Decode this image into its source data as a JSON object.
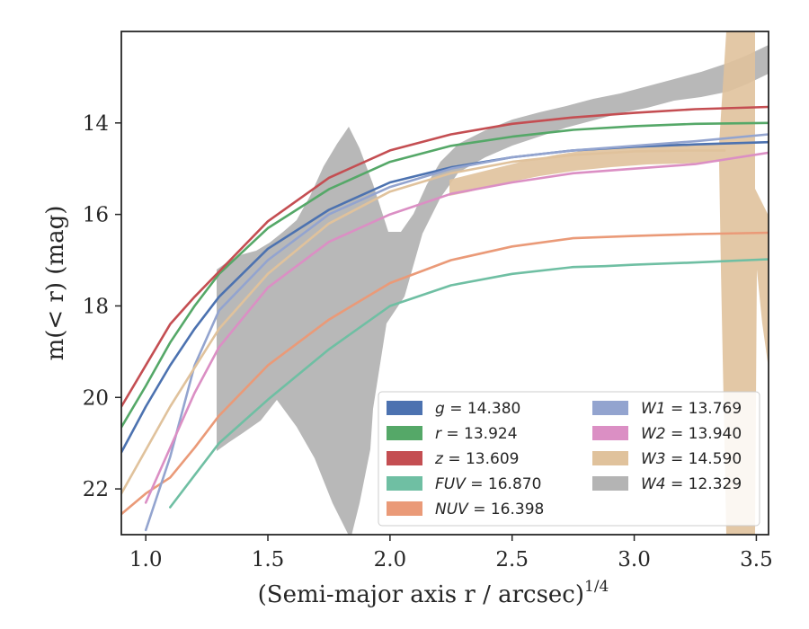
{
  "chart_data": {
    "type": "line",
    "xlabel": "(Semi-major axis r / arcsec)",
    "xlabel_exponent": "1/4",
    "ylabel": "m(< r) (mag)",
    "xlim": [
      0.9,
      3.55
    ],
    "ylim": [
      23.0,
      12.0
    ],
    "xticks": [
      "1.0",
      "1.5",
      "2.0",
      "2.5",
      "3.0",
      "3.5"
    ],
    "yticks": [
      "14",
      "16",
      "18",
      "20",
      "22"
    ],
    "legend_position": "lower-right",
    "legend": [
      {
        "band": "g",
        "value": "14.380",
        "color": "#4c72b0"
      },
      {
        "band": "r",
        "value": "13.924",
        "color": "#55a868"
      },
      {
        "band": "z",
        "value": "13.609",
        "color": "#c44e52"
      },
      {
        "band": "FUV",
        "value": "16.870",
        "color": "#6fbfa3"
      },
      {
        "band": "NUV",
        "value": "16.398",
        "color": "#ea9a78"
      },
      {
        "band": "W1",
        "value": "13.769",
        "color": "#93a4cf"
      },
      {
        "band": "W2",
        "value": "13.940",
        "color": "#db8fc4"
      },
      {
        "band": "W3",
        "value": "14.590",
        "color": "#e0c29c"
      },
      {
        "band": "W4",
        "value": "12.329",
        "color": "#b4b4b4"
      }
    ],
    "series": [
      {
        "name": "g",
        "color": "#4c72b0",
        "x": [
          0.9,
          1.0,
          1.1,
          1.2,
          1.3,
          1.5,
          1.75,
          2.0,
          2.25,
          2.5,
          2.75,
          3.0,
          3.25,
          3.55
        ],
        "y": [
          21.2,
          20.2,
          19.3,
          18.5,
          17.8,
          16.75,
          15.9,
          15.3,
          14.97,
          14.75,
          14.6,
          14.52,
          14.47,
          14.42
        ]
      },
      {
        "name": "r",
        "color": "#55a868",
        "x": [
          0.9,
          1.0,
          1.1,
          1.2,
          1.3,
          1.5,
          1.75,
          2.0,
          2.25,
          2.5,
          2.75,
          3.0,
          3.25,
          3.55
        ],
        "y": [
          20.65,
          19.75,
          18.8,
          18.0,
          17.3,
          16.3,
          15.45,
          14.85,
          14.5,
          14.3,
          14.15,
          14.07,
          14.02,
          14.0
        ]
      },
      {
        "name": "z",
        "color": "#c44e52",
        "x": [
          0.9,
          1.0,
          1.1,
          1.2,
          1.3,
          1.5,
          1.75,
          2.0,
          2.25,
          2.5,
          2.75,
          3.0,
          3.25,
          3.55
        ],
        "y": [
          20.2,
          19.3,
          18.4,
          17.8,
          17.25,
          16.15,
          15.2,
          14.6,
          14.25,
          14.02,
          13.88,
          13.78,
          13.7,
          13.65
        ]
      },
      {
        "name": "FUV",
        "color": "#6fbfa3",
        "x": [
          1.1,
          1.2,
          1.3,
          1.5,
          1.75,
          2.0,
          2.25,
          2.5,
          2.75,
          2.88,
          3.0,
          3.25,
          3.55
        ],
        "y": [
          22.4,
          21.7,
          21.0,
          20.05,
          18.95,
          18.0,
          17.55,
          17.3,
          17.15,
          17.13,
          17.1,
          17.05,
          16.98
        ]
      },
      {
        "name": "NUV",
        "color": "#ea9a78",
        "x": [
          0.9,
          1.0,
          1.1,
          1.2,
          1.3,
          1.5,
          1.75,
          2.0,
          2.25,
          2.5,
          2.75,
          3.0,
          3.25,
          3.55
        ],
        "y": [
          22.55,
          22.1,
          21.75,
          21.1,
          20.4,
          19.3,
          18.3,
          17.5,
          17.0,
          16.7,
          16.52,
          16.47,
          16.43,
          16.4
        ]
      },
      {
        "name": "W1",
        "color": "#93a4cf",
        "x": [
          1.0,
          1.1,
          1.2,
          1.3,
          1.5,
          1.75,
          2.0,
          2.25,
          2.5,
          2.75,
          3.0,
          3.25,
          3.55
        ],
        "y": [
          22.9,
          21.3,
          19.3,
          18.1,
          17.0,
          16.0,
          15.4,
          15.0,
          14.75,
          14.6,
          14.5,
          14.4,
          14.25
        ]
      },
      {
        "name": "W2",
        "color": "#db8fc4",
        "x": [
          1.0,
          1.1,
          1.2,
          1.3,
          1.5,
          1.75,
          2.0,
          2.25,
          2.5,
          2.75,
          3.0,
          3.25,
          3.55
        ],
        "y": [
          22.3,
          21.1,
          19.9,
          18.9,
          17.6,
          16.6,
          16.0,
          15.55,
          15.3,
          15.1,
          15.0,
          14.9,
          14.65
        ]
      },
      {
        "name": "W3",
        "color": "#e0c29c",
        "x": [
          0.9,
          1.1,
          1.3,
          1.5,
          1.75,
          2.0,
          2.25,
          2.5,
          2.75,
          3.0,
          3.25,
          3.37
        ],
        "y": [
          22.1,
          20.2,
          18.5,
          17.3,
          16.2,
          15.5,
          15.1,
          14.85,
          14.7,
          14.62,
          14.6,
          14.6
        ]
      },
      {
        "name": "W4",
        "color": "#b4b4b4",
        "x": [
          1.29,
          1.4,
          1.55,
          1.7,
          1.82,
          1.9,
          2.0,
          2.1,
          2.25,
          2.5,
          2.75,
          3.0,
          3.25,
          3.55
        ],
        "y": [
          19.0,
          18.6,
          18.2,
          17.5,
          16.0,
          17.0,
          17.6,
          16.5,
          15.2,
          14.6,
          14.2,
          13.7,
          13.2,
          12.6
        ]
      }
    ]
  }
}
